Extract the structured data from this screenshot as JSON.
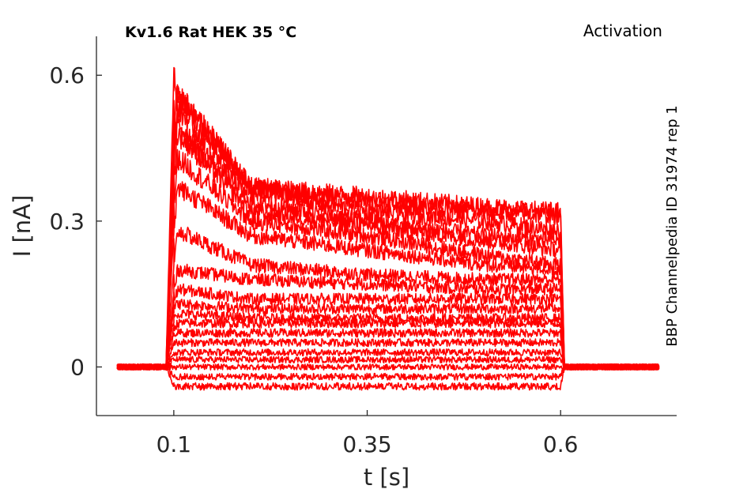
{
  "chart_data": {
    "type": "line",
    "title": "Kv1.6  Rat  HEK  35 °C",
    "protocol_label": "Activation",
    "side_label": "BBP Channelpedia ID 31974 rep 1",
    "xlabel": "t [s]",
    "ylabel": "I [nA]",
    "xlim": [
      0.0,
      0.75
    ],
    "ylim": [
      -0.1,
      0.68
    ],
    "xticks": [
      0.1,
      0.35,
      0.6
    ],
    "xtick_labels": [
      "0.1",
      "0.35",
      "0.6"
    ],
    "yticks": [
      0,
      0.3,
      0.6
    ],
    "ytick_labels": [
      "0",
      "0.3",
      "0.6"
    ],
    "grid": false,
    "line_color": "#ff0000",
    "pulse_start": 0.1,
    "pulse_end": 0.6,
    "sweep_start": 0.027,
    "sweep_end": 0.727,
    "series": [
      {
        "values": {
          "x": [
            0.027,
            0.09,
            0.1,
            0.105,
            0.2,
            0.35,
            0.5,
            0.6,
            0.605,
            0.727
          ],
          "y": [
            0.0,
            0.0,
            -0.04,
            -0.04,
            -0.04,
            -0.04,
            -0.04,
            -0.04,
            0.0,
            0.0
          ]
        }
      },
      {
        "values": {
          "x": [
            0.027,
            0.09,
            0.1,
            0.105,
            0.2,
            0.35,
            0.5,
            0.6,
            0.605,
            0.727
          ],
          "y": [
            0.0,
            0.0,
            -0.02,
            -0.02,
            -0.02,
            -0.02,
            -0.02,
            -0.02,
            0.0,
            0.0
          ]
        }
      },
      {
        "values": {
          "x": [
            0.027,
            0.09,
            0.1,
            0.105,
            0.2,
            0.35,
            0.5,
            0.6,
            0.605,
            0.727
          ],
          "y": [
            0.0,
            0.0,
            0.0,
            0.0,
            0.0,
            0.0,
            0.0,
            0.0,
            0.0,
            0.0
          ]
        }
      },
      {
        "values": {
          "x": [
            0.027,
            0.09,
            0.1,
            0.105,
            0.2,
            0.35,
            0.5,
            0.6,
            0.605,
            0.727
          ],
          "y": [
            0.0,
            0.0,
            0.015,
            0.015,
            0.015,
            0.015,
            0.015,
            0.015,
            0.0,
            0.0
          ]
        }
      },
      {
        "values": {
          "x": [
            0.027,
            0.09,
            0.1,
            0.105,
            0.2,
            0.35,
            0.5,
            0.6,
            0.605,
            0.727
          ],
          "y": [
            0.0,
            0.0,
            0.03,
            0.03,
            0.03,
            0.03,
            0.03,
            0.03,
            0.0,
            0.0
          ]
        }
      },
      {
        "values": {
          "x": [
            0.027,
            0.09,
            0.1,
            0.105,
            0.2,
            0.35,
            0.5,
            0.6,
            0.605,
            0.727
          ],
          "y": [
            0.0,
            0.0,
            0.05,
            0.05,
            0.05,
            0.05,
            0.05,
            0.05,
            0.0,
            0.0
          ]
        }
      },
      {
        "values": {
          "x": [
            0.027,
            0.09,
            0.1,
            0.105,
            0.2,
            0.35,
            0.5,
            0.6,
            0.605,
            0.727
          ],
          "y": [
            0.0,
            0.0,
            0.07,
            0.07,
            0.07,
            0.07,
            0.07,
            0.07,
            0.0,
            0.0
          ]
        }
      },
      {
        "values": {
          "x": [
            0.027,
            0.09,
            0.1,
            0.105,
            0.2,
            0.35,
            0.5,
            0.6,
            0.605,
            0.727
          ],
          "y": [
            0.0,
            0.0,
            0.08,
            0.09,
            0.09,
            0.09,
            0.09,
            0.09,
            0.0,
            0.0
          ]
        }
      },
      {
        "values": {
          "x": [
            0.027,
            0.09,
            0.1,
            0.105,
            0.2,
            0.35,
            0.5,
            0.6,
            0.605,
            0.727
          ],
          "y": [
            0.0,
            0.0,
            0.1,
            0.11,
            0.1,
            0.1,
            0.1,
            0.1,
            0.0,
            0.0
          ]
        }
      },
      {
        "values": {
          "x": [
            0.027,
            0.09,
            0.1,
            0.105,
            0.2,
            0.35,
            0.5,
            0.6,
            0.605,
            0.727
          ],
          "y": [
            0.0,
            0.0,
            0.12,
            0.13,
            0.12,
            0.12,
            0.12,
            0.12,
            0.0,
            0.0
          ]
        }
      },
      {
        "values": {
          "x": [
            0.027,
            0.09,
            0.1,
            0.105,
            0.2,
            0.35,
            0.5,
            0.6,
            0.605,
            0.727
          ],
          "y": [
            0.0,
            0.0,
            0.13,
            0.16,
            0.14,
            0.14,
            0.14,
            0.14,
            0.0,
            0.0
          ]
        }
      },
      {
        "values": {
          "x": [
            0.027,
            0.09,
            0.1,
            0.105,
            0.2,
            0.35,
            0.5,
            0.6,
            0.605,
            0.727
          ],
          "y": [
            0.0,
            0.0,
            0.15,
            0.2,
            0.18,
            0.17,
            0.16,
            0.16,
            0.0,
            0.0
          ]
        }
      },
      {
        "values": {
          "x": [
            0.027,
            0.09,
            0.1,
            0.105,
            0.2,
            0.35,
            0.5,
            0.6,
            0.605,
            0.727
          ],
          "y": [
            0.0,
            0.0,
            0.2,
            0.28,
            0.21,
            0.19,
            0.18,
            0.18,
            0.0,
            0.0
          ]
        }
      },
      {
        "values": {
          "x": [
            0.027,
            0.09,
            0.1,
            0.105,
            0.2,
            0.35,
            0.5,
            0.6,
            0.605,
            0.727
          ],
          "y": [
            0.0,
            0.0,
            0.28,
            0.37,
            0.27,
            0.24,
            0.21,
            0.2,
            0.0,
            0.0
          ]
        }
      },
      {
        "values": {
          "x": [
            0.027,
            0.09,
            0.1,
            0.105,
            0.2,
            0.35,
            0.5,
            0.6,
            0.605,
            0.727
          ],
          "y": [
            0.0,
            0.0,
            0.33,
            0.43,
            0.3,
            0.27,
            0.23,
            0.21,
            0.0,
            0.0
          ]
        }
      },
      {
        "values": {
          "x": [
            0.027,
            0.09,
            0.1,
            0.105,
            0.2,
            0.35,
            0.5,
            0.6,
            0.605,
            0.727
          ],
          "y": [
            0.0,
            0.0,
            0.38,
            0.48,
            0.32,
            0.29,
            0.26,
            0.24,
            0.0,
            0.0
          ]
        }
      },
      {
        "values": {
          "x": [
            0.027,
            0.09,
            0.1,
            0.105,
            0.2,
            0.35,
            0.5,
            0.6,
            0.605,
            0.727
          ],
          "y": [
            0.0,
            0.0,
            0.42,
            0.5,
            0.34,
            0.3,
            0.27,
            0.26,
            0.0,
            0.0
          ]
        }
      },
      {
        "values": {
          "x": [
            0.027,
            0.09,
            0.1,
            0.105,
            0.2,
            0.35,
            0.5,
            0.6,
            0.605,
            0.727
          ],
          "y": [
            0.0,
            0.0,
            0.46,
            0.53,
            0.36,
            0.32,
            0.3,
            0.28,
            0.0,
            0.0
          ]
        }
      },
      {
        "values": {
          "x": [
            0.027,
            0.09,
            0.1,
            0.105,
            0.2,
            0.35,
            0.5,
            0.6,
            0.605,
            0.727
          ],
          "y": [
            0.0,
            0.0,
            0.5,
            0.56,
            0.37,
            0.34,
            0.32,
            0.31,
            0.0,
            0.0
          ]
        }
      },
      {
        "values": {
          "x": [
            0.027,
            0.09,
            0.1,
            0.105,
            0.2,
            0.35,
            0.5,
            0.6,
            0.605,
            0.727
          ],
          "y": [
            0.0,
            0.0,
            0.6,
            0.56,
            0.37,
            0.35,
            0.33,
            0.32,
            0.0,
            0.0
          ]
        }
      }
    ]
  }
}
